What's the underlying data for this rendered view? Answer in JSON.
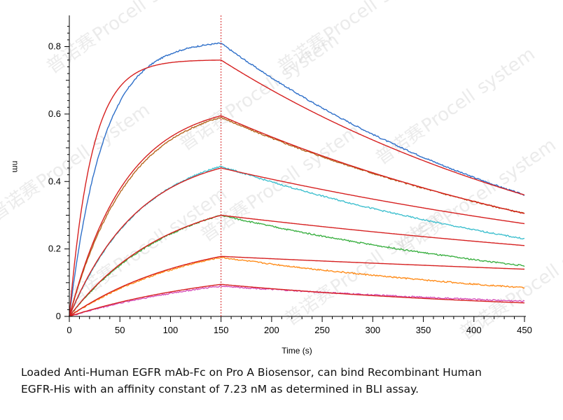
{
  "chart_data": {
    "type": "line",
    "title": "",
    "xlabel": "Time (s)",
    "ylabel": "nm",
    "xlim": [
      0,
      450
    ],
    "ylim": [
      0,
      0.88
    ],
    "xticks": [
      0,
      50,
      100,
      150,
      200,
      250,
      300,
      350,
      400,
      450
    ],
    "yticks": [
      0,
      0.2,
      0.4,
      0.6,
      0.8
    ],
    "ytick_labels": [
      "0",
      "0.2",
      "0.4",
      "0.6",
      "0.8"
    ],
    "grid": false,
    "association_end": 150,
    "series": [
      {
        "name": "curve-1",
        "color": "#2e6fc9",
        "fit_color": "#d62020",
        "peak": 0.81,
        "end": 0.36,
        "fit_peak": 0.76,
        "fit_end": 0.36
      },
      {
        "name": "curve-2",
        "color": "#b5651d",
        "fit_color": "#d62020",
        "peak": 0.59,
        "end": 0.305,
        "fit_peak": 0.595,
        "fit_end": 0.305
      },
      {
        "name": "curve-3",
        "color": "#40c0cf",
        "fit_color": "#d62020",
        "peak": 0.445,
        "end": 0.23,
        "fit_peak": 0.44,
        "fit_end": 0.275
      },
      {
        "name": "curve-4",
        "color": "#3cb043",
        "fit_color": "#d62020",
        "peak": 0.3,
        "end": 0.15,
        "fit_peak": 0.3,
        "fit_end": 0.21
      },
      {
        "name": "curve-5",
        "color": "#ff8c1a",
        "fit_color": "#d62020",
        "peak": 0.175,
        "end": 0.085,
        "fit_peak": 0.178,
        "fit_end": 0.14
      },
      {
        "name": "curve-6",
        "color": "#d64fb8",
        "fit_color": "#d62020",
        "peak": 0.09,
        "end": 0.045,
        "fit_peak": 0.095,
        "fit_end": 0.04
      }
    ]
  },
  "watermark": {
    "brand": "Procell",
    "brand_small": "system",
    "cn": "普诺赛"
  },
  "caption": {
    "line1": "Loaded Anti-Human EGFR mAb-Fc on Pro A Biosensor, can bind Recombinant Human",
    "line2": "EGFR-His with an affinity constant of 7.23 nM as determined in BLI assay."
  }
}
